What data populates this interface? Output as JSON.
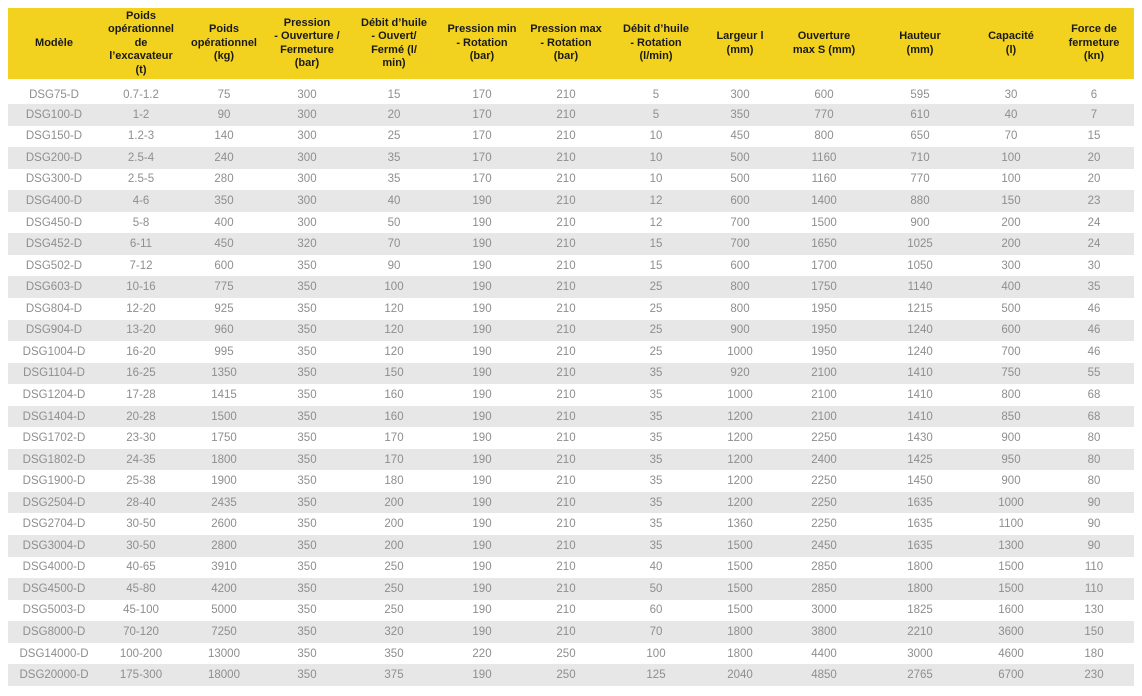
{
  "colors": {
    "header_bg": "#F2D21E",
    "header_text": "#1A1A1A",
    "row_alt_bg": "#E7E7E7",
    "row_text": "#8E8E8E",
    "page_bg": "#FFFFFF"
  },
  "chart_data": {
    "type": "table",
    "columns": [
      "Modèle",
      "Poids\nopérationnel\nde\nl’excavateur\n(t)",
      "Poids\nopérationnel\n(kg)",
      "Pression\n- Ouverture /\nFermeture\n(bar)",
      "Débit d’huile\n- Ouvert/\nFermé (l/\nmin)",
      "Pression min\n- Rotation\n(bar)",
      "Pression max\n- Rotation\n(bar)",
      "Débit d’huile\n- Rotation\n(l/min)",
      "Largeur l\n(mm)",
      "Ouverture\nmax S (mm)",
      "Hauteur\n(mm)",
      "Capacité\n(l)",
      "Force de\nfermeture\n(kn)"
    ],
    "rows": [
      [
        "DSG75-D",
        "0.7-1.2",
        "75",
        "300",
        "15",
        "170",
        "210",
        "5",
        "300",
        "600",
        "595",
        "30",
        "6"
      ],
      [
        "DSG100-D",
        "1-2",
        "90",
        "300",
        "20",
        "170",
        "210",
        "5",
        "350",
        "770",
        "610",
        "40",
        "7"
      ],
      [
        "DSG150-D",
        "1.2-3",
        "140",
        "300",
        "25",
        "170",
        "210",
        "10",
        "450",
        "800",
        "650",
        "70",
        "15"
      ],
      [
        "DSG200-D",
        "2.5-4",
        "240",
        "300",
        "35",
        "170",
        "210",
        "10",
        "500",
        "1160",
        "710",
        "100",
        "20"
      ],
      [
        "DSG300-D",
        "2.5-5",
        "280",
        "300",
        "35",
        "170",
        "210",
        "10",
        "500",
        "1160",
        "770",
        "100",
        "20"
      ],
      [
        "DSG400-D",
        "4-6",
        "350",
        "300",
        "40",
        "190",
        "210",
        "12",
        "600",
        "1400",
        "880",
        "150",
        "23"
      ],
      [
        "DSG450-D",
        "5-8",
        "400",
        "300",
        "50",
        "190",
        "210",
        "12",
        "700",
        "1500",
        "900",
        "200",
        "24"
      ],
      [
        "DSG452-D",
        "6-11",
        "450",
        "320",
        "70",
        "190",
        "210",
        "15",
        "700",
        "1650",
        "1025",
        "200",
        "24"
      ],
      [
        "DSG502-D",
        "7-12",
        "600",
        "350",
        "90",
        "190",
        "210",
        "15",
        "600",
        "1700",
        "1050",
        "300",
        "30"
      ],
      [
        "DSG603-D",
        "10-16",
        "775",
        "350",
        "100",
        "190",
        "210",
        "25",
        "800",
        "1750",
        "1140",
        "400",
        "35"
      ],
      [
        "DSG804-D",
        "12-20",
        "925",
        "350",
        "120",
        "190",
        "210",
        "25",
        "800",
        "1950",
        "1215",
        "500",
        "46"
      ],
      [
        "DSG904-D",
        "13-20",
        "960",
        "350",
        "120",
        "190",
        "210",
        "25",
        "900",
        "1950",
        "1240",
        "600",
        "46"
      ],
      [
        "DSG1004-D",
        "16-20",
        "995",
        "350",
        "120",
        "190",
        "210",
        "25",
        "1000",
        "1950",
        "1240",
        "700",
        "46"
      ],
      [
        "DSG1104-D",
        "16-25",
        "1350",
        "350",
        "150",
        "190",
        "210",
        "35",
        "920",
        "2100",
        "1410",
        "750",
        "55"
      ],
      [
        "DSG1204-D",
        "17-28",
        "1415",
        "350",
        "160",
        "190",
        "210",
        "35",
        "1000",
        "2100",
        "1410",
        "800",
        "68"
      ],
      [
        "DSG1404-D",
        "20-28",
        "1500",
        "350",
        "160",
        "190",
        "210",
        "35",
        "1200",
        "2100",
        "1410",
        "850",
        "68"
      ],
      [
        "DSG1702-D",
        "23-30",
        "1750",
        "350",
        "170",
        "190",
        "210",
        "35",
        "1200",
        "2250",
        "1430",
        "900",
        "80"
      ],
      [
        "DSG1802-D",
        "24-35",
        "1800",
        "350",
        "170",
        "190",
        "210",
        "35",
        "1200",
        "2400",
        "1425",
        "950",
        "80"
      ],
      [
        "DSG1900-D",
        "25-38",
        "1900",
        "350",
        "180",
        "190",
        "210",
        "35",
        "1200",
        "2250",
        "1450",
        "900",
        "80"
      ],
      [
        "DSG2504-D",
        "28-40",
        "2435",
        "350",
        "200",
        "190",
        "210",
        "35",
        "1200",
        "2250",
        "1635",
        "1000",
        "90"
      ],
      [
        "DSG2704-D",
        "30-50",
        "2600",
        "350",
        "200",
        "190",
        "210",
        "35",
        "1360",
        "2250",
        "1635",
        "1100",
        "90"
      ],
      [
        "DSG3004-D",
        "30-50",
        "2800",
        "350",
        "200",
        "190",
        "210",
        "35",
        "1500",
        "2450",
        "1635",
        "1300",
        "90"
      ],
      [
        "DSG4000-D",
        "40-65",
        "3910",
        "350",
        "250",
        "190",
        "210",
        "40",
        "1500",
        "2850",
        "1800",
        "1500",
        "110"
      ],
      [
        "DSG4500-D",
        "45-80",
        "4200",
        "350",
        "250",
        "190",
        "210",
        "50",
        "1500",
        "2850",
        "1800",
        "1500",
        "110"
      ],
      [
        "DSG5003-D",
        "45-100",
        "5000",
        "350",
        "250",
        "190",
        "210",
        "60",
        "1500",
        "3000",
        "1825",
        "1600",
        "130"
      ],
      [
        "DSG8000-D",
        "70-120",
        "7250",
        "350",
        "320",
        "190",
        "210",
        "70",
        "1800",
        "3800",
        "2210",
        "3600",
        "150"
      ],
      [
        "DSG14000-D",
        "100-200",
        "13000",
        "350",
        "350",
        "220",
        "250",
        "100",
        "1800",
        "4400",
        "3000",
        "4600",
        "180"
      ],
      [
        "DSG20000-D",
        "175-300",
        "18000",
        "350",
        "375",
        "190",
        "250",
        "125",
        "2040",
        "4850",
        "2765",
        "6700",
        "230"
      ]
    ]
  }
}
